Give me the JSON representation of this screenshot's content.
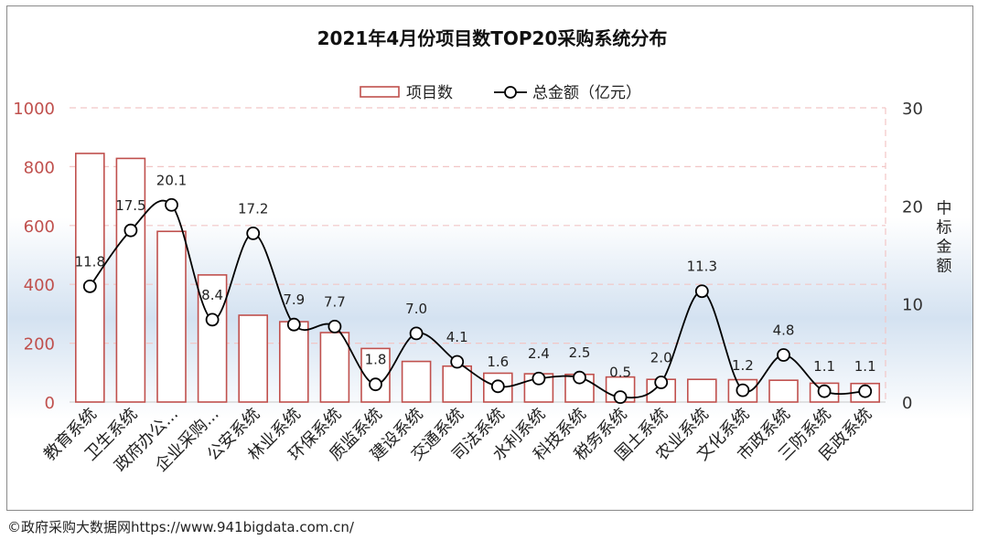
{
  "chart_data": {
    "type": "bar",
    "title": "2021年4月份项目数TOP20采购系统分布",
    "categories": [
      "教育系统",
      "卫生系统",
      "政府办公...",
      "企业采购...",
      "公安系统",
      "林业系统",
      "环保系统",
      "质监系统",
      "建设系统",
      "交通系统",
      "司法系统",
      "水利系统",
      "科技系统",
      "税务系统",
      "国土系统",
      "农业系统",
      "文化系统",
      "市政系统",
      "三防系统",
      "民政系统"
    ],
    "series": [
      {
        "name": "项目数",
        "type": "bar",
        "axis": "left",
        "values": [
          845,
          828,
          580,
          432,
          295,
          273,
          236,
          182,
          138,
          122,
          98,
          96,
          94,
          85,
          77,
          77,
          76,
          74,
          64,
          63
        ]
      },
      {
        "name": "总金额（亿元）",
        "type": "line",
        "axis": "right",
        "values": [
          11.8,
          17.5,
          20.1,
          8.4,
          17.2,
          7.9,
          7.7,
          1.8,
          7.0,
          4.1,
          1.6,
          2.4,
          2.5,
          0.5,
          2.0,
          11.3,
          1.2,
          4.8,
          1.1,
          1.1
        ]
      }
    ],
    "ylim": [
      0,
      1000
    ],
    "y_ticks": [
      "0",
      "200",
      "400",
      "600",
      "800",
      "1000"
    ],
    "y2lim": [
      0,
      30
    ],
    "y2_ticks": [
      "0",
      "10",
      "20",
      "30"
    ],
    "y2label": "中标金额",
    "legend_position": "top-center",
    "grid": "dashed-horizontal",
    "colors": {
      "bar_edge": "#c0504d",
      "bar_fill": "#ffffff",
      "line": "#000000",
      "left_axis_text": "#c0504d",
      "gridline": "#f2c6c6",
      "band_mid": "#d4e2f1"
    }
  },
  "footer": "©政府采购大数据网https://www.941bigdata.com.cn/"
}
